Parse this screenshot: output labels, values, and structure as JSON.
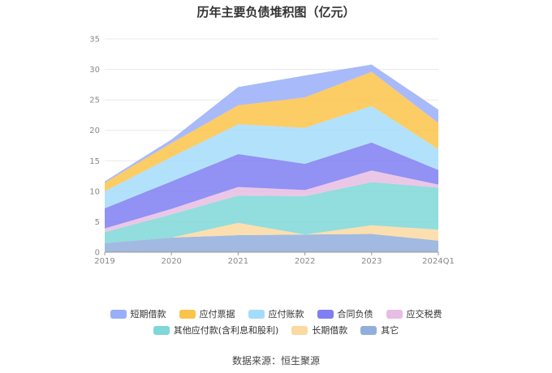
{
  "chart_data": {
    "type": "area",
    "stacked": true,
    "title": "历年主要负债堆积图（亿元）",
    "categories": [
      "2019",
      "2020",
      "2021",
      "2022",
      "2023",
      "2024Q1"
    ],
    "ylim": [
      0,
      35
    ],
    "yticks": [
      0,
      5,
      10,
      15,
      20,
      25,
      30,
      35
    ],
    "grid": true,
    "legend_position": "bottom",
    "series": [
      {
        "name": "其它",
        "color": "#92aedc",
        "values": [
          1.5,
          2.4,
          2.8,
          2.9,
          3.0,
          1.9
        ]
      },
      {
        "name": "长期借款",
        "color": "#fcd9a0",
        "values": [
          0,
          0,
          2.0,
          0,
          1.4,
          1.8
        ]
      },
      {
        "name": "其他应付款(含利息和股利)",
        "color": "#7fd7d7",
        "values": [
          1.8,
          3.8,
          4.5,
          6.3,
          7.1,
          6.9
        ]
      },
      {
        "name": "应交税费",
        "color": "#e7bde3",
        "values": [
          0.6,
          0.9,
          1.4,
          1.0,
          1.9,
          0.5
        ]
      },
      {
        "name": "合同负债",
        "color": "#7f7ef2",
        "values": [
          3.3,
          4.5,
          5.4,
          4.3,
          4.6,
          2.4
        ]
      },
      {
        "name": "应付账款",
        "color": "#a5dcfb",
        "values": [
          2.8,
          4.0,
          4.9,
          5.9,
          6.0,
          3.4
        ]
      },
      {
        "name": "应付票据",
        "color": "#fcc34a",
        "values": [
          1.4,
          2.3,
          3.1,
          5.0,
          5.6,
          4.3
        ]
      },
      {
        "name": "短期借款",
        "color": "#99aef8",
        "values": [
          0.2,
          0.6,
          3.0,
          3.6,
          1.2,
          2.2
        ]
      }
    ],
    "legend_order": [
      "短期借款",
      "应付票据",
      "应付账款",
      "合同负债",
      "应交税费",
      "其他应付款(含利息和股利)",
      "长期借款",
      "其它"
    ]
  },
  "source_text": "数据来源：恒生聚源"
}
